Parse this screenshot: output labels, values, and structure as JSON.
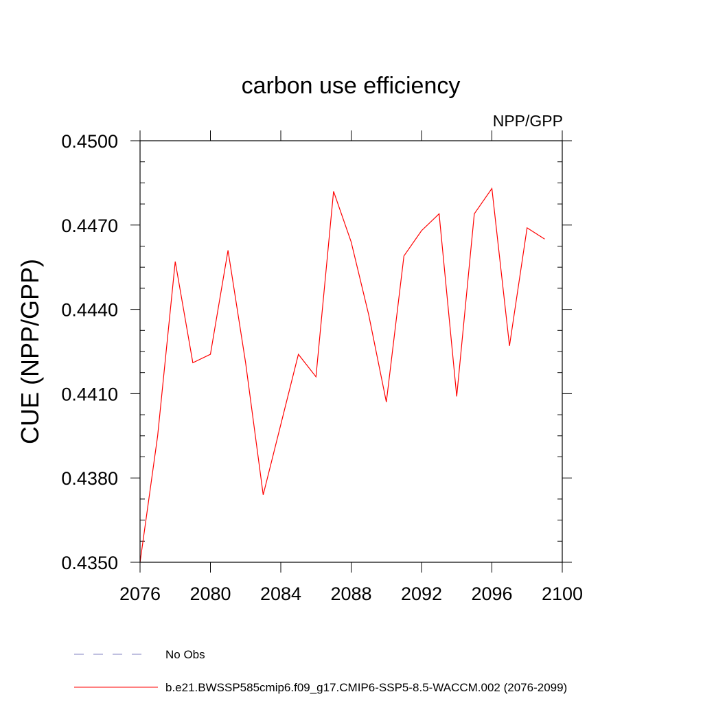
{
  "chart_data": {
    "type": "line",
    "title": "carbon use efficiency",
    "subtitle": "NPP/GPP",
    "ylabel": "CUE  (NPP/GPP)",
    "xlabel": "",
    "xlim": [
      2076,
      2100
    ],
    "ylim": [
      0.435,
      0.45
    ],
    "xticks": [
      2076,
      2080,
      2084,
      2088,
      2092,
      2096,
      2100
    ],
    "xtick_labels": [
      "2076",
      "2080",
      "2084",
      "2088",
      "2092",
      "2096",
      "2100"
    ],
    "yticks": [
      0.435,
      0.438,
      0.441,
      0.444,
      0.447,
      0.45
    ],
    "ytick_labels": [
      "0.4350",
      "0.4380",
      "0.4410",
      "0.4440",
      "0.4470",
      "0.4500"
    ],
    "grid": false,
    "series": [
      {
        "name": "b.e21.BWSSP585cmip6.f09_g17.CMIP6-SSP5-8.5-WACCM.002 (2076-2099)",
        "color": "#ff0000",
        "style": "solid",
        "x": [
          2076,
          2077,
          2078,
          2079,
          2080,
          2081,
          2082,
          2083,
          2084,
          2085,
          2086,
          2087,
          2088,
          2089,
          2090,
          2091,
          2092,
          2093,
          2094,
          2095,
          2096,
          2097,
          2098,
          2099
        ],
        "values": [
          0.435,
          0.4395,
          0.4457,
          0.4421,
          0.4424,
          0.4461,
          0.4421,
          0.4374,
          0.4399,
          0.4424,
          0.4416,
          0.4482,
          0.4464,
          0.4438,
          0.4407,
          0.4459,
          0.4468,
          0.4474,
          0.4409,
          0.4474,
          0.4483,
          0.4427,
          0.4469,
          0.4465
        ]
      }
    ],
    "legend": [
      {
        "label": "No Obs",
        "color": "#8080c0",
        "style": "dashed"
      },
      {
        "label": "b.e21.BWSSP585cmip6.f09_g17.CMIP6-SSP5-8.5-WACCM.002 (2076-2099)",
        "color": "#ff0000",
        "style": "solid"
      }
    ],
    "legend_position": "bottom-left"
  }
}
